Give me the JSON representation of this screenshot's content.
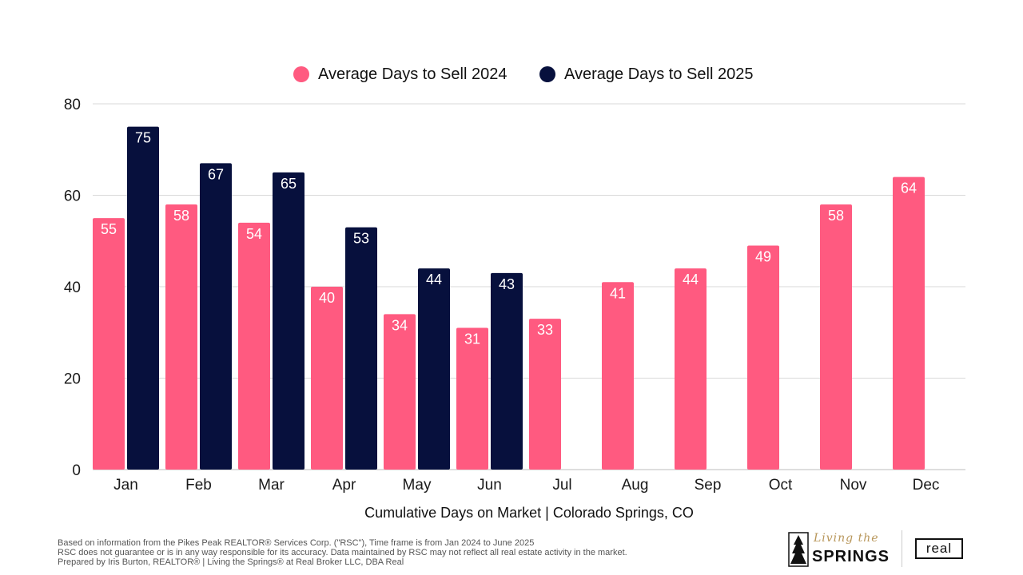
{
  "chart_data": {
    "type": "bar",
    "title": "",
    "xlabel": "Cumulative Days on Market | Colorado Springs, CO",
    "ylabel": "",
    "ylim": [
      0,
      80
    ],
    "yticks": [
      0,
      20,
      40,
      60,
      80
    ],
    "grid": true,
    "legend_position": "top-center",
    "categories": [
      "Jan",
      "Feb",
      "Mar",
      "Apr",
      "May",
      "Jun",
      "Jul",
      "Aug",
      "Sep",
      "Oct",
      "Nov",
      "Dec"
    ],
    "series": [
      {
        "name": "Average Days to Sell 2024",
        "color": "#FF5A80",
        "values": [
          55,
          58,
          54,
          40,
          34,
          31,
          33,
          41,
          44,
          49,
          58,
          64
        ]
      },
      {
        "name": "Average Days to Sell 2025",
        "color": "#07103D",
        "values": [
          75,
          67,
          65,
          53,
          44,
          43,
          null,
          null,
          null,
          null,
          null,
          null
        ]
      }
    ]
  },
  "footer": {
    "line1": "Based on information from the Pikes Peak REALTOR® Services Corp. (\"RSC\"), Time frame is from Jan 2024 to June 2025",
    "line2": "RSC does not guarantee or is in any way responsible for its accuracy. Data maintained by RSC may not reflect all real estate activity in the market.",
    "line3": "Prepared by Iris Burton, REALTOR® | Living the Springs® at Real Broker LLC, DBA Real"
  },
  "branding": {
    "logo_script": "Living the",
    "logo_main": "SPRINGS",
    "brokerage_logo": "real"
  }
}
